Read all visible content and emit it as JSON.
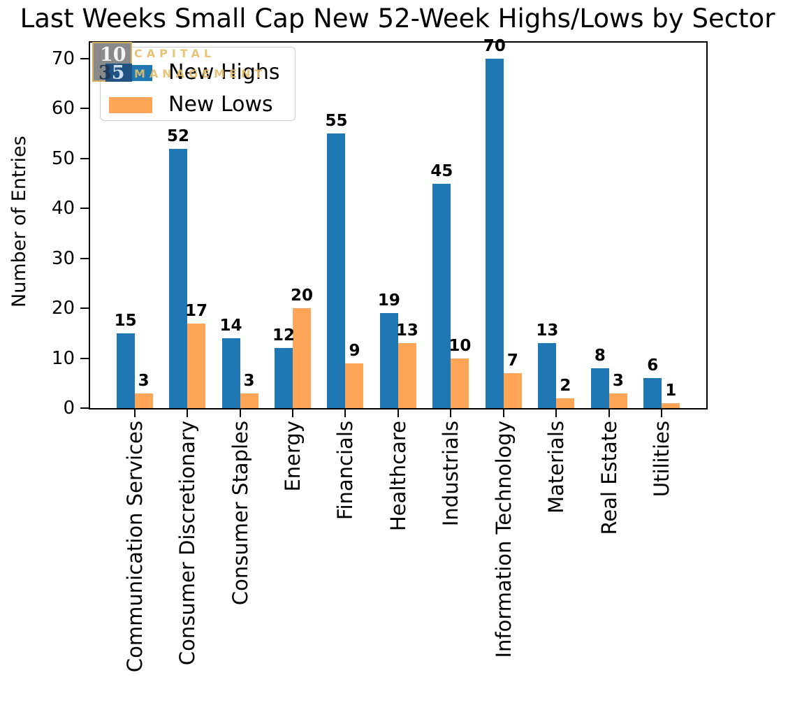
{
  "title": "Last Weeks Small Cap New 52-Week Highs/Lows by Sector",
  "watermark": {
    "digits_top": "10",
    "digit_3": "3",
    "digit_5": "5",
    "word1": "CAPITAL",
    "word2": "MANAGEMENT"
  },
  "legend": {
    "items": [
      {
        "label": "New Highs",
        "color": "#1f77b4"
      },
      {
        "label": "New Lows",
        "color": "#ffa557"
      }
    ],
    "position": "upper left"
  },
  "chart_data": {
    "type": "bar",
    "title": "Last Weeks Small Cap New 52-Week Highs/Lows by Sector",
    "categories": [
      "Communication Services",
      "Consumer Discretionary",
      "Consumer Staples",
      "Energy",
      "Financials",
      "Healthcare",
      "Industrials",
      "Information Technology",
      "Materials",
      "Real Estate",
      "Utilities"
    ],
    "series": [
      {
        "name": "New Highs",
        "color": "#1f77b4",
        "values": [
          15,
          52,
          14,
          12,
          55,
          19,
          45,
          70,
          13,
          8,
          6
        ]
      },
      {
        "name": "New Lows",
        "color": "#ffa557",
        "values": [
          3,
          17,
          3,
          20,
          9,
          13,
          10,
          7,
          2,
          3,
          1
        ]
      }
    ],
    "xlabel": "",
    "ylabel": "Number of Entries",
    "yticks": [
      0,
      10,
      20,
      30,
      40,
      50,
      60,
      70
    ],
    "ylim": [
      0,
      73.5
    ],
    "grid": false,
    "bar_value_labels": true,
    "x_tick_rotation": 90
  }
}
